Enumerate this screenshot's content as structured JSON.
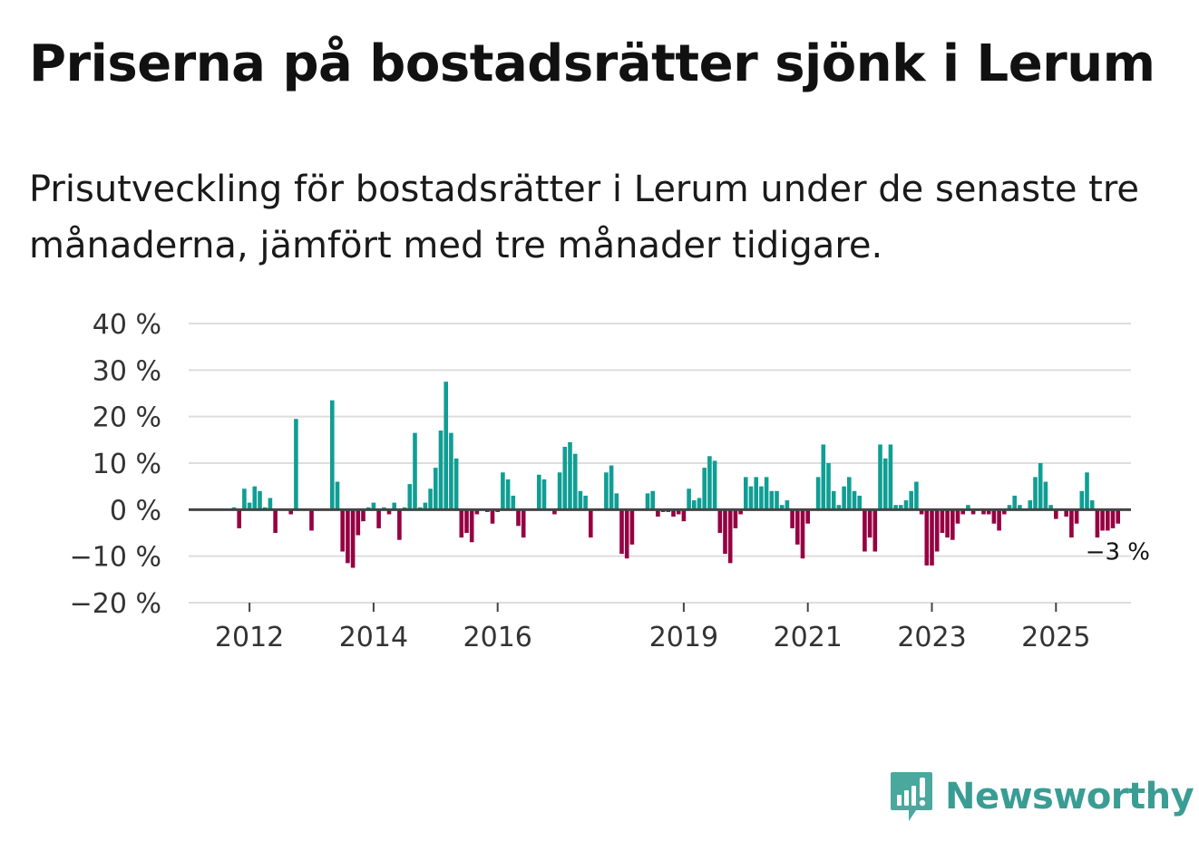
{
  "title": "Priserna på bostadsrätter sjönk i Lerum",
  "subtitle": "Prisutveckling för bostadsrätter i Lerum under de senaste tre månaderna, jämfört med tre månader tidigare.",
  "brand": {
    "name": "Newsworthy",
    "color": "#3a9d94",
    "icon": "newsworthy-logo-icon"
  },
  "colors": {
    "positive": "#0f9e94",
    "negative": "#960042",
    "grid": "#dddddd",
    "zero": "#444444"
  },
  "chart_data": {
    "type": "bar",
    "title": "Priserna på bostadsrätter sjönk i Lerum",
    "xlabel": "",
    "ylabel": "",
    "ylim": [
      -20,
      40
    ],
    "yticks": [
      40,
      30,
      20,
      10,
      0,
      -10,
      -20
    ],
    "ytick_labels": [
      "40 %",
      "30 %",
      "20 %",
      "10 %",
      "0 %",
      "−10 %",
      "−20 %"
    ],
    "xticks": [
      {
        "label": "2012",
        "year": 2012
      },
      {
        "label": "2014",
        "year": 2014
      },
      {
        "label": "2016",
        "year": 2016
      },
      {
        "label": "2019",
        "year": 2019
      },
      {
        "label": "2021",
        "year": 2021
      },
      {
        "label": "2023",
        "year": 2023
      },
      {
        "label": "2025",
        "year": 2025
      }
    ],
    "start": {
      "year": 2011,
      "month": 10
    },
    "values": [
      0.5,
      -4,
      4.5,
      1.5,
      5,
      4,
      0.5,
      2.5,
      -5,
      0,
      0,
      -1,
      19.5,
      0,
      0,
      -4.5,
      0,
      0,
      0,
      23.5,
      6,
      -9,
      -11.5,
      -12.5,
      -5.5,
      -2.5,
      0.5,
      1.5,
      -4,
      0.5,
      -1,
      1.5,
      -6.5,
      0.5,
      5.5,
      16.5,
      0.5,
      1.5,
      4.5,
      9,
      17,
      27.5,
      16.5,
      11,
      -6,
      -5,
      -7,
      -1,
      0,
      -0.5,
      -3,
      -0.5,
      8,
      6.5,
      3,
      -3.5,
      -6,
      0,
      0,
      7.5,
      6.5,
      0,
      -1,
      8,
      13.5,
      14.5,
      12,
      4,
      3,
      -6,
      0,
      0,
      8,
      9.5,
      3.5,
      -9.5,
      -10.5,
      -7.5,
      0,
      0,
      3.5,
      4,
      -1.5,
      -0.5,
      -0.5,
      -1.5,
      -1,
      -2.5,
      4.5,
      2,
      2.5,
      9,
      11.5,
      10.5,
      -5,
      -9.5,
      -11.5,
      -4,
      -1,
      7,
      5,
      7,
      5,
      7,
      4,
      4,
      1,
      2,
      -4,
      -7.5,
      -10.5,
      -3,
      0,
      7,
      14,
      10,
      4,
      1,
      5,
      7,
      4,
      3,
      -9,
      -6,
      -9,
      14,
      11,
      14,
      1,
      1,
      2,
      4,
      6,
      -1,
      -12,
      -12,
      -9,
      -5,
      -6,
      -6.5,
      -3,
      -1,
      1,
      -1,
      0,
      -1,
      -1,
      -3,
      -4.5,
      -1,
      1,
      3,
      1,
      0,
      2,
      7,
      10,
      6,
      1,
      -2,
      0,
      -1.5,
      -6,
      -3,
      4,
      8,
      2,
      -6,
      -4.5,
      -4.5,
      -4,
      -3
    ],
    "annotation": {
      "label": "−3 %",
      "value": -3
    }
  }
}
